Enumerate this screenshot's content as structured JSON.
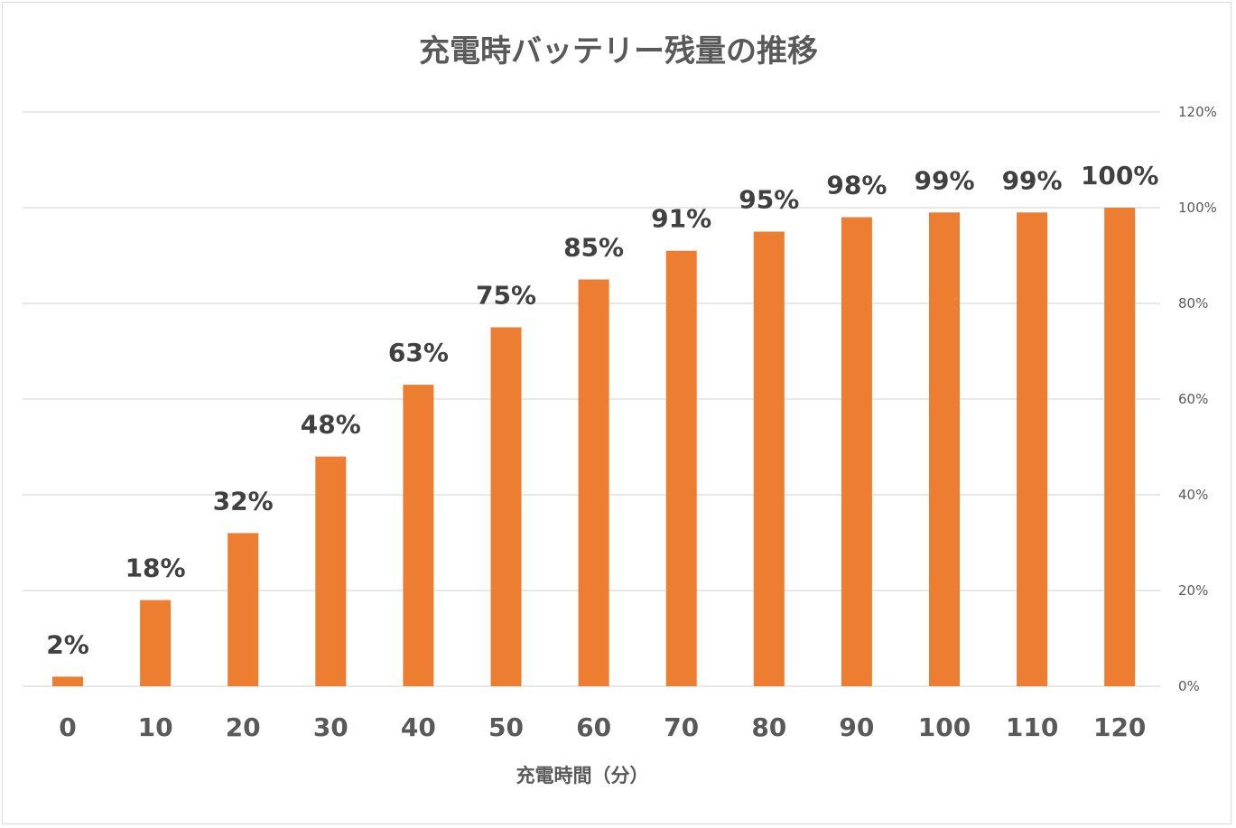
{
  "chart_data": {
    "type": "bar",
    "title": "充電時バッテリー残量の推移",
    "xlabel": "充電時間（分）",
    "ylabel": "",
    "categories": [
      "0",
      "10",
      "20",
      "30",
      "40",
      "50",
      "60",
      "70",
      "80",
      "90",
      "100",
      "110",
      "120"
    ],
    "values": [
      2,
      18,
      32,
      48,
      63,
      75,
      85,
      91,
      95,
      98,
      99,
      99,
      100
    ],
    "data_labels": [
      "2%",
      "18%",
      "32%",
      "48%",
      "63%",
      "75%",
      "85%",
      "91%",
      "95%",
      "98%",
      "99%",
      "99%",
      "100%"
    ],
    "ylim": [
      0,
      120
    ],
    "yticks": [
      0,
      20,
      40,
      60,
      80,
      100,
      120
    ],
    "ytick_labels": [
      "0%",
      "20%",
      "40%",
      "60%",
      "80%",
      "100%",
      "120%"
    ],
    "y_axis_side": "right",
    "grid": true,
    "legend": "none",
    "bar_color": "#ED7D31",
    "grid_color": "#D9D9D9"
  }
}
